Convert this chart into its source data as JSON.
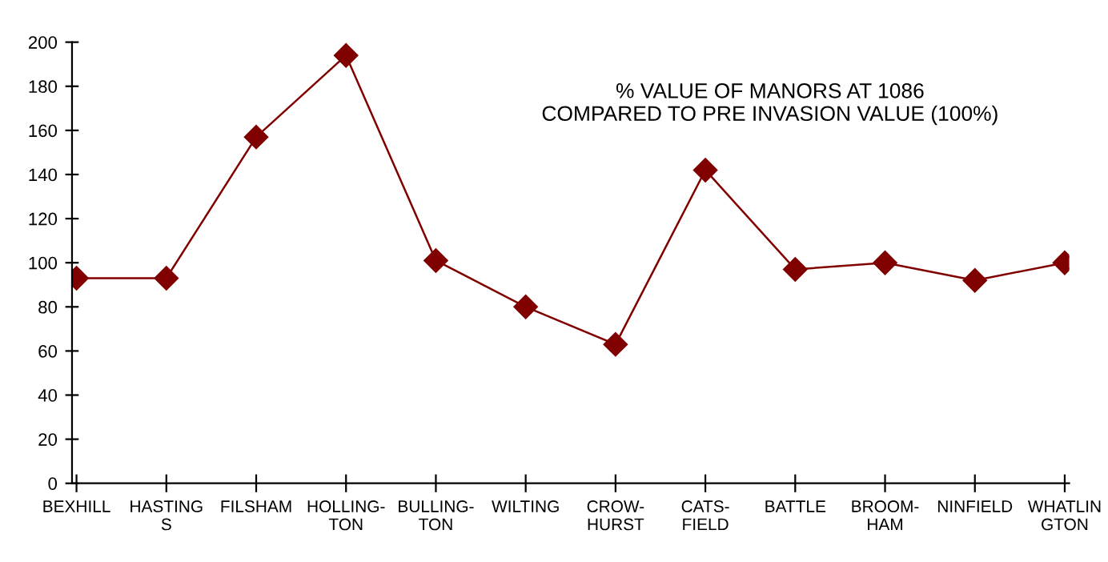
{
  "chart_data": {
    "type": "line",
    "title": "% VALUE OF MANORS AT 1086\nCOMPARED TO PRE INVASION VALUE (100%)",
    "categories": [
      "BEXHILL",
      "HASTING\nS",
      "FILSHAM",
      "HOLLING-\nTON",
      "BULLING-\nTON",
      "WILTING",
      "CROW-\nHURST",
      "CATS-\nFIELD",
      "BATTLE",
      "BROOM-\nHAM",
      "NINFIELD",
      "WHATLIN\nGTON"
    ],
    "series": [
      {
        "color": "#800000",
        "values": [
          93,
          93,
          157,
          194,
          101,
          80,
          63,
          142,
          97,
          100,
          92,
          100
        ]
      }
    ],
    "ylim": [
      0,
      200
    ],
    "yticks": [
      0,
      20,
      40,
      60,
      80,
      100,
      120,
      140,
      160,
      180,
      200
    ],
    "marker": "diamond",
    "line_style": "solid",
    "grid": false,
    "legend": false
  }
}
